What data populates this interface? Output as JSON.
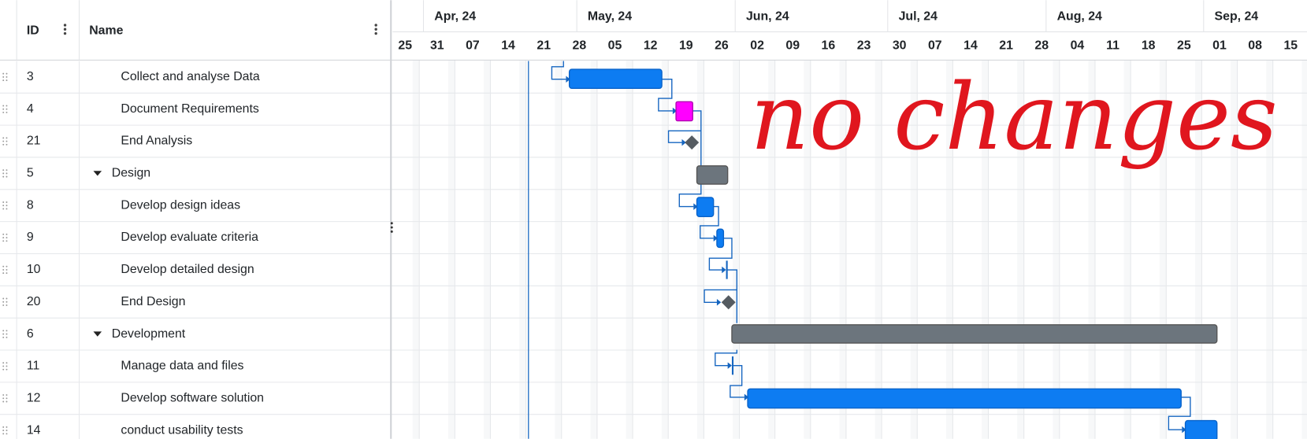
{
  "header": {
    "columns": [
      "ID",
      "Name"
    ]
  },
  "timeline": {
    "months": [
      "Apr, 24",
      "May, 24",
      "Jun, 24",
      "Jul, 24",
      "Aug, 24",
      "Sep, 24"
    ],
    "weeks": [
      "25",
      "31",
      "07",
      "14",
      "21",
      "28",
      "05",
      "12",
      "19",
      "26",
      "02",
      "09",
      "16",
      "23",
      "30",
      "07",
      "14",
      "21",
      "28",
      "04",
      "11",
      "18",
      "25",
      "01",
      "08",
      "15"
    ]
  },
  "rows": [
    {
      "id": "3",
      "name": "Collect and analyse Data"
    },
    {
      "id": "4",
      "name": "Document Requirements"
    },
    {
      "id": "21",
      "name": "End Analysis"
    },
    {
      "id": "5",
      "name": "Design"
    },
    {
      "id": "8",
      "name": "Develop design ideas"
    },
    {
      "id": "9",
      "name": "Develop evaluate criteria"
    },
    {
      "id": "10",
      "name": "Develop detailed design"
    },
    {
      "id": "20",
      "name": "End Design"
    },
    {
      "id": "6",
      "name": "Development"
    },
    {
      "id": "11",
      "name": "Manage data and files"
    },
    {
      "id": "12",
      "name": "Develop software solution"
    },
    {
      "id": "14",
      "name": "conduct usability tests"
    }
  ],
  "annotation": "no changes"
}
